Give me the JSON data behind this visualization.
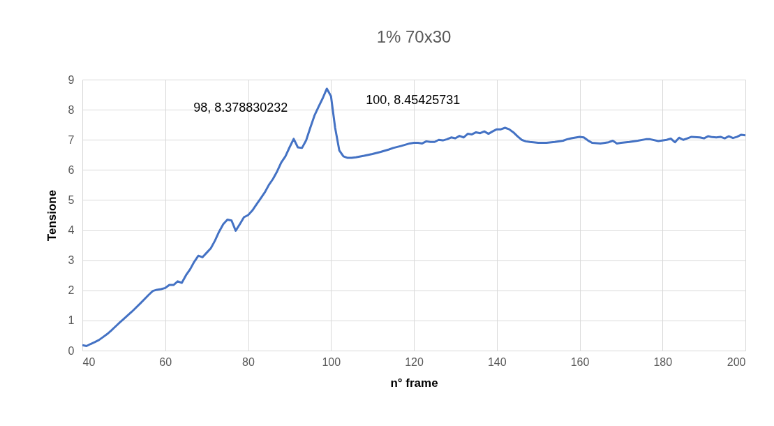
{
  "chart_data": {
    "type": "line",
    "title": "1% 70x30",
    "xlabel": "n° frame",
    "ylabel": "Tensione",
    "x": [
      40,
      41,
      42,
      43,
      44,
      45,
      46,
      47,
      48,
      49,
      50,
      52,
      54,
      56,
      57,
      58,
      59,
      60,
      61,
      62,
      63,
      64,
      65,
      66,
      67,
      68,
      69,
      70,
      71,
      72,
      73,
      74,
      75,
      76,
      77,
      78,
      79,
      80,
      81,
      82,
      83,
      84,
      85,
      86,
      87,
      88,
      89,
      90,
      91,
      92,
      93,
      94,
      95,
      96,
      97,
      98,
      99,
      100,
      101,
      102,
      103,
      104,
      105,
      106,
      108,
      110,
      112,
      114,
      115,
      117,
      119,
      120,
      121,
      122,
      123,
      124,
      125,
      126,
      127,
      128,
      129,
      130,
      131,
      132,
      133,
      134,
      135,
      136,
      137,
      138,
      139,
      140,
      141,
      142,
      143,
      144,
      145,
      146,
      147,
      148,
      150,
      152,
      154,
      156,
      157,
      158,
      160,
      161,
      162,
      163,
      165,
      167,
      168,
      169,
      170,
      172,
      174,
      176,
      177,
      179,
      181,
      182,
      183,
      184,
      185,
      186,
      187,
      189,
      190,
      191,
      192,
      193,
      194,
      195,
      196,
      197,
      198,
      199,
      200
    ],
    "series": [
      {
        "color": "#4472c4",
        "values": [
          0.18,
          0.15,
          0.22,
          0.28,
          0.35,
          0.45,
          0.55,
          0.67,
          0.8,
          0.93,
          1.05,
          1.3,
          1.57,
          1.85,
          1.98,
          2.02,
          2.04,
          2.08,
          2.18,
          2.18,
          2.3,
          2.25,
          2.5,
          2.7,
          2.95,
          3.15,
          3.1,
          3.25,
          3.4,
          3.65,
          3.95,
          4.2,
          4.35,
          4.32,
          3.98,
          4.2,
          4.43,
          4.5,
          4.65,
          4.85,
          5.05,
          5.25,
          5.5,
          5.7,
          5.95,
          6.25,
          6.45,
          6.75,
          7.03,
          6.75,
          6.73,
          6.98,
          7.4,
          7.8,
          8.1,
          8.38,
          8.7,
          8.45,
          7.4,
          6.65,
          6.45,
          6.4,
          6.4,
          6.42,
          6.47,
          6.53,
          6.6,
          6.68,
          6.73,
          6.8,
          6.88,
          6.9,
          6.9,
          6.88,
          6.95,
          6.93,
          6.93,
          7.0,
          6.98,
          7.02,
          7.08,
          7.05,
          7.13,
          7.08,
          7.2,
          7.18,
          7.25,
          7.22,
          7.28,
          7.2,
          7.28,
          7.35,
          7.35,
          7.4,
          7.35,
          7.25,
          7.12,
          7.0,
          6.95,
          6.93,
          6.9,
          6.9,
          6.93,
          6.97,
          7.02,
          7.05,
          7.1,
          7.08,
          6.98,
          6.9,
          6.88,
          6.92,
          6.97,
          6.88,
          6.9,
          6.93,
          6.97,
          7.02,
          7.02,
          6.96,
          7.0,
          7.04,
          6.92,
          7.07,
          7.0,
          7.05,
          7.1,
          7.08,
          7.05,
          7.12,
          7.09,
          7.08,
          7.1,
          7.05,
          7.12,
          7.06,
          7.1,
          7.17,
          7.15
        ]
      }
    ],
    "xlim": [
      40,
      200
    ],
    "xticks": [
      40,
      60,
      80,
      100,
      120,
      140,
      160,
      180,
      200
    ],
    "ylim": [
      0,
      9
    ],
    "yticks": [
      0,
      1,
      2,
      3,
      4,
      5,
      6,
      7,
      8,
      9
    ],
    "grid": true,
    "legend": false,
    "marker": "none",
    "line_style": "solid",
    "annotations": [
      {
        "text": "98, 8.378830232",
        "x": 98,
        "y": 8.378830232
      },
      {
        "text": "100, 8.45425731",
        "x": 100,
        "y": 8.45425731
      }
    ]
  }
}
